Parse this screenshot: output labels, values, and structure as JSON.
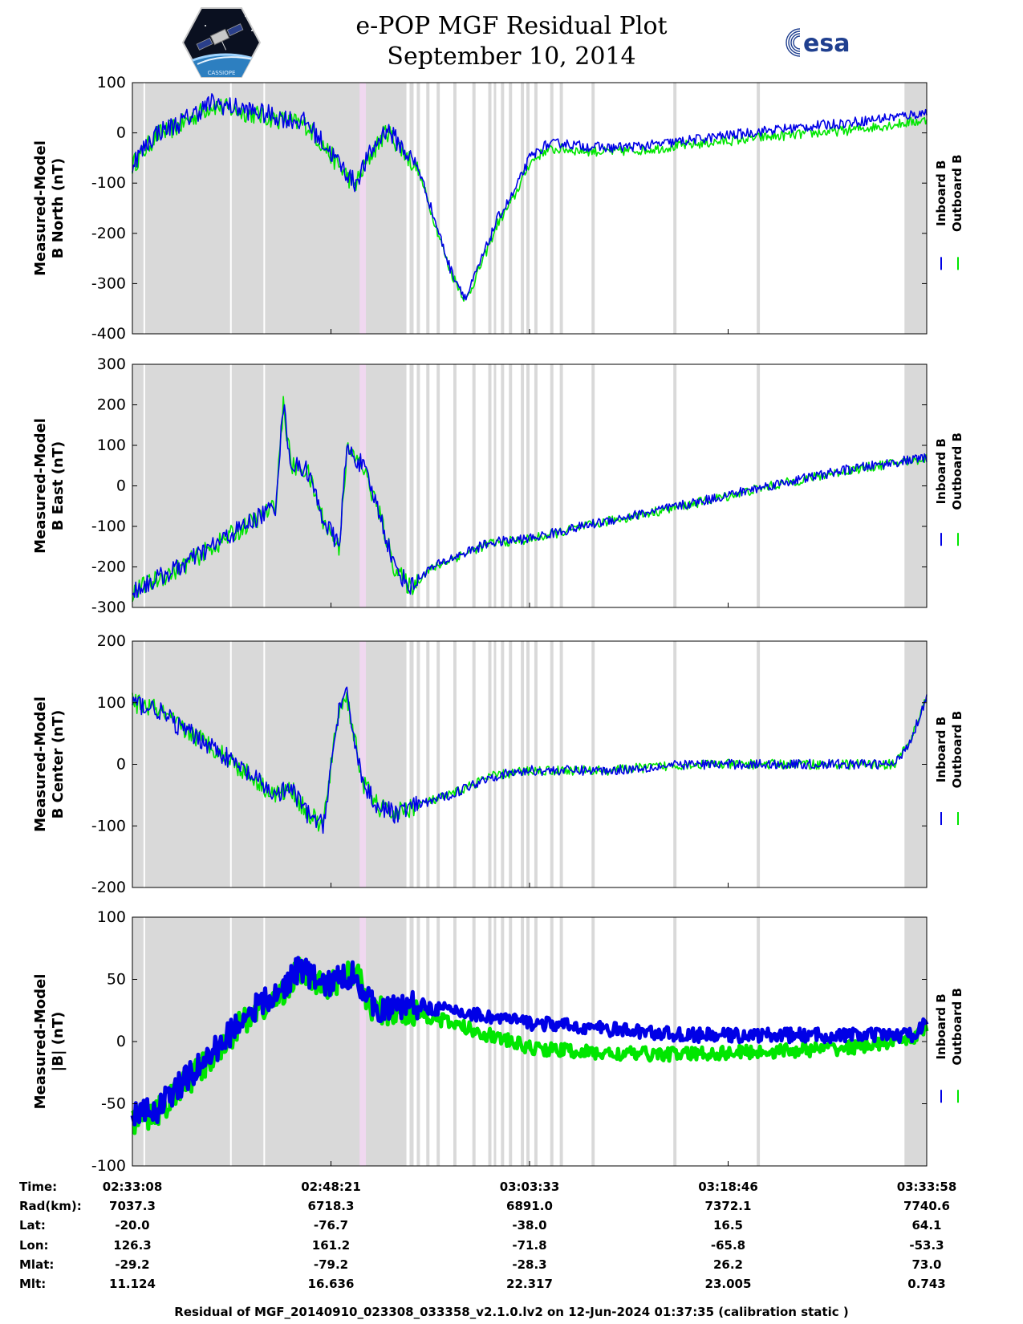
{
  "header": {
    "title_line1": "e-POP MGF Residual Plot",
    "title_line2": "September 10, 2014",
    "logo_right_text": "esa",
    "logo_left_text": "CASSIOPE"
  },
  "colors": {
    "inboard": "#0000e6",
    "outboard": "#00e600",
    "shade": "#d9d9d9",
    "highlight": "#f0d8f0"
  },
  "legend": {
    "inboard": "Inboard B",
    "outboard": "Outboard B"
  },
  "chart_data": [
    {
      "type": "line",
      "ylabel_line1": "Measured-Model",
      "ylabel_line2": "B North (nT)",
      "ylim": [
        -400,
        100
      ],
      "yticks": [
        100,
        0,
        -100,
        -200,
        -300,
        -400
      ],
      "series": [
        {
          "name": "Inboard B",
          "x": [
            0,
            3,
            6,
            10,
            16,
            22,
            26,
            28,
            30,
            32,
            34,
            36,
            38,
            40,
            42,
            44,
            46,
            48,
            50,
            52,
            54,
            56,
            60,
            65,
            70,
            80,
            90,
            100
          ],
          "y": [
            -60,
            0,
            20,
            60,
            40,
            20,
            -60,
            -100,
            -40,
            10,
            -30,
            -70,
            -170,
            -270,
            -330,
            -250,
            -170,
            -120,
            -50,
            -25,
            -20,
            -25,
            -30,
            -25,
            -15,
            5,
            20,
            40
          ]
        },
        {
          "name": "Outboard B",
          "x": [
            0,
            3,
            6,
            10,
            16,
            22,
            26,
            28,
            30,
            32,
            34,
            36,
            38,
            40,
            42,
            44,
            46,
            48,
            50,
            52,
            54,
            56,
            60,
            65,
            70,
            80,
            90,
            100
          ],
          "y": [
            -65,
            -5,
            15,
            55,
            35,
            15,
            -65,
            -105,
            -45,
            5,
            -35,
            -75,
            -175,
            -275,
            -335,
            -258,
            -180,
            -130,
            -60,
            -35,
            -32,
            -35,
            -38,
            -33,
            -24,
            -8,
            5,
            25
          ]
        }
      ]
    },
    {
      "type": "line",
      "ylabel_line1": "Measured-Model",
      "ylabel_line2": "B East (nT)",
      "ylim": [
        -300,
        300
      ],
      "yticks": [
        300,
        200,
        100,
        0,
        -100,
        -200,
        -300
      ],
      "series": [
        {
          "name": "Inboard B",
          "x": [
            0,
            3,
            6,
            10,
            14,
            18,
            19,
            20,
            22,
            24,
            26,
            27,
            29,
            31,
            33,
            35,
            37,
            40,
            45,
            50,
            60,
            70,
            80,
            90,
            100
          ],
          "y": [
            -260,
            -230,
            -200,
            -150,
            -100,
            -50,
            200,
            50,
            40,
            -80,
            -150,
            90,
            50,
            -60,
            -200,
            -250,
            -210,
            -180,
            -140,
            -130,
            -85,
            -45,
            0,
            40,
            70
          ]
        },
        {
          "name": "Outboard B",
          "x": [
            0,
            3,
            6,
            10,
            14,
            18,
            19,
            20,
            22,
            24,
            26,
            27,
            29,
            31,
            33,
            35,
            37,
            40,
            45,
            50,
            60,
            70,
            80,
            90,
            100
          ],
          "y": [
            -262,
            -232,
            -202,
            -152,
            -102,
            -52,
            198,
            48,
            38,
            -82,
            -152,
            88,
            48,
            -62,
            -202,
            -252,
            -212,
            -182,
            -142,
            -132,
            -87,
            -47,
            -2,
            38,
            68
          ]
        }
      ]
    },
    {
      "type": "line",
      "ylabel_line1": "Measured-Model",
      "ylabel_line2": "B Center (nT)",
      "ylim": [
        -200,
        200
      ],
      "yticks": [
        200,
        100,
        0,
        -100,
        -200
      ],
      "series": [
        {
          "name": "Inboard B",
          "x": [
            0,
            3,
            6,
            10,
            14,
            18,
            20,
            22,
            24,
            26,
            27,
            29,
            31,
            33,
            35,
            40,
            45,
            50,
            60,
            70,
            80,
            90,
            96,
            98,
            100
          ],
          "y": [
            100,
            90,
            60,
            30,
            -10,
            -50,
            -40,
            -80,
            -100,
            90,
            110,
            -30,
            -70,
            -80,
            -70,
            -50,
            -20,
            -10,
            -10,
            0,
            0,
            0,
            0,
            40,
            110
          ]
        },
        {
          "name": "Outboard B",
          "x": [
            0,
            3,
            6,
            10,
            14,
            18,
            20,
            22,
            24,
            26,
            27,
            29,
            31,
            33,
            35,
            40,
            45,
            50,
            60,
            70,
            80,
            90,
            96,
            98,
            100
          ],
          "y": [
            100,
            90,
            60,
            30,
            -10,
            -50,
            -40,
            -80,
            -100,
            90,
            110,
            -30,
            -70,
            -80,
            -70,
            -50,
            -20,
            -10,
            -10,
            0,
            0,
            0,
            0,
            40,
            110
          ]
        }
      ]
    },
    {
      "type": "line",
      "ylabel_line1": "Measured-Model",
      "ylabel_line2": "|B| (nT)",
      "ylim": [
        -100,
        100
      ],
      "yticks": [
        100,
        50,
        0,
        -50,
        -100
      ],
      "series": [
        {
          "name": "Inboard B",
          "x": [
            0,
            3,
            6,
            10,
            14,
            16,
            18,
            21,
            24,
            28,
            30,
            32,
            35,
            40,
            45,
            50,
            60,
            70,
            80,
            90,
            98,
            100
          ],
          "y": [
            -60,
            -55,
            -35,
            -10,
            20,
            30,
            35,
            60,
            45,
            55,
            30,
            25,
            30,
            25,
            20,
            15,
            10,
            5,
            5,
            5,
            5,
            15
          ]
        },
        {
          "name": "Outboard B",
          "x": [
            0,
            3,
            6,
            10,
            14,
            16,
            18,
            21,
            24,
            28,
            30,
            32,
            35,
            40,
            45,
            50,
            60,
            70,
            80,
            90,
            98,
            100
          ],
          "y": [
            -63,
            -58,
            -38,
            -13,
            17,
            27,
            32,
            58,
            43,
            57,
            28,
            23,
            25,
            15,
            5,
            -5,
            -10,
            -10,
            -8,
            -5,
            2,
            12
          ]
        }
      ]
    }
  ],
  "shaded_intervals": [
    [
      0,
      34.5
    ],
    [
      34.9,
      35.4
    ],
    [
      35.8,
      36.2
    ],
    [
      37.0,
      37.4
    ],
    [
      38.3,
      38.7
    ],
    [
      40.4,
      40.8
    ],
    [
      42.8,
      43.2
    ],
    [
      44.8,
      45.2
    ],
    [
      45.5,
      45.8
    ],
    [
      46.4,
      46.8
    ],
    [
      47.4,
      47.8
    ],
    [
      48.9,
      49.3
    ],
    [
      49.6,
      50.0
    ],
    [
      50.6,
      51.0
    ],
    [
      52.6,
      53.0
    ],
    [
      53.8,
      54.2
    ],
    [
      57.8,
      58.2
    ],
    [
      68.1,
      68.5
    ],
    [
      78.6,
      79.0
    ],
    [
      97.2,
      100
    ]
  ],
  "white_lines": [
    1.5,
    12.4,
    16.6
  ],
  "highlight_interval": [
    28.6,
    29.4
  ],
  "x_axis": {
    "tick_positions": [
      0,
      25,
      50,
      75,
      100
    ]
  },
  "info_table": {
    "rows": [
      {
        "label": "Time:",
        "values": [
          "02:33:08",
          "02:48:21",
          "03:03:33",
          "03:18:46",
          "03:33:58"
        ]
      },
      {
        "label": "Rad(km):",
        "values": [
          "7037.3",
          "6718.3",
          "6891.0",
          "7372.1",
          "7740.6"
        ]
      },
      {
        "label": "Lat:",
        "values": [
          "-20.0",
          "-76.7",
          "-38.0",
          "16.5",
          "64.1"
        ]
      },
      {
        "label": "Lon:",
        "values": [
          "126.3",
          "161.2",
          "-71.8",
          "-65.8",
          "-53.3"
        ]
      },
      {
        "label": "Mlat:",
        "values": [
          "-29.2",
          "-79.2",
          "-28.3",
          "26.2",
          "73.0"
        ]
      },
      {
        "label": "Mlt:",
        "values": [
          "11.124",
          "16.636",
          "22.317",
          "23.005",
          "0.743"
        ]
      }
    ]
  },
  "footer": {
    "text": "Residual of MGF_20140910_023308_033358_v2.1.0.lv2 on 12-Jun-2024 01:37:35 (calibration static )"
  }
}
